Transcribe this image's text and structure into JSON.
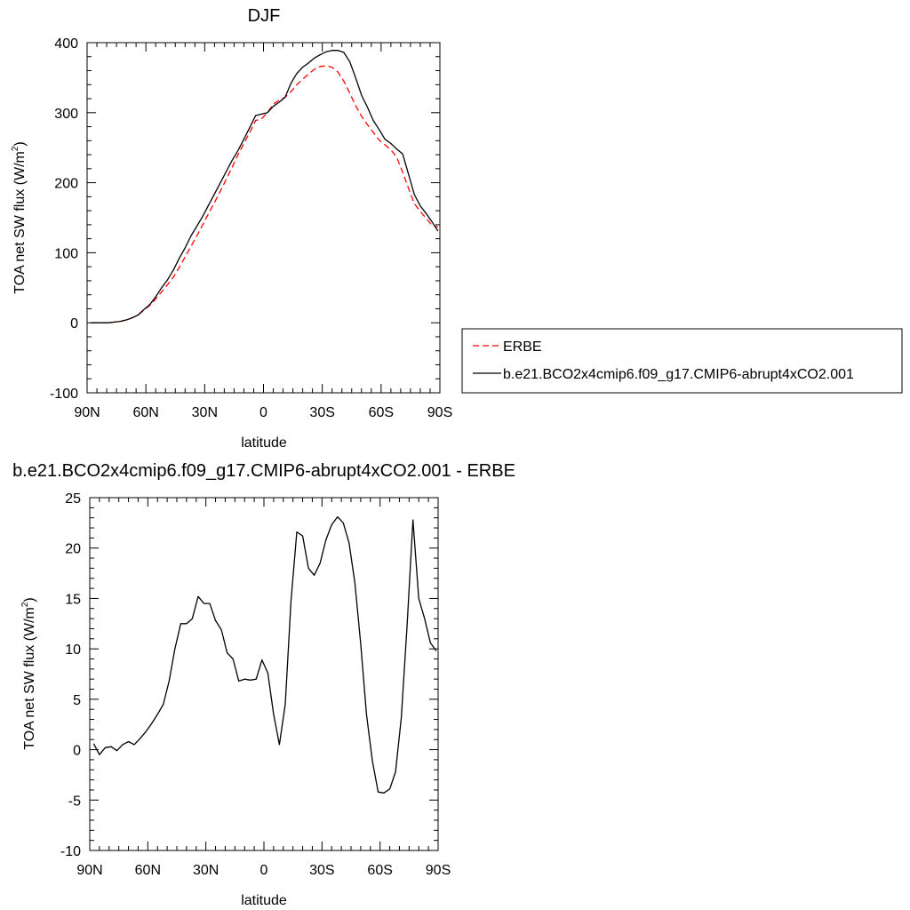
{
  "chart_data": [
    {
      "type": "line",
      "title": "DJF",
      "xlabel": "latitude",
      "ylabel": "TOA net SW flux (W/m",
      "ylabel_sup": "2",
      "ylabel_close": ")",
      "xlim": [
        90,
        -90
      ],
      "ylim": [
        -100,
        400
      ],
      "x_ticks": [
        {
          "value": 90,
          "label": "90N"
        },
        {
          "value": 60,
          "label": "60N"
        },
        {
          "value": 30,
          "label": "30N"
        },
        {
          "value": 0,
          "label": "0"
        },
        {
          "value": -30,
          "label": "30S"
        },
        {
          "value": -60,
          "label": "60S"
        },
        {
          "value": -90,
          "label": "90S"
        }
      ],
      "y_ticks": [
        {
          "value": -100,
          "label": "-100"
        },
        {
          "value": 0,
          "label": "0"
        },
        {
          "value": 100,
          "label": "100"
        },
        {
          "value": 200,
          "label": "200"
        },
        {
          "value": 300,
          "label": "300"
        },
        {
          "value": 400,
          "label": "400"
        }
      ],
      "legend_position": "right",
      "series": [
        {
          "name": "ERBE",
          "color": "#ff0000",
          "dash": true,
          "x": [
            88,
            85,
            82,
            79,
            76,
            73,
            70,
            67,
            64,
            61,
            58,
            55,
            52,
            49,
            46,
            43,
            40,
            37,
            34,
            31,
            28,
            25,
            22,
            19,
            16,
            13,
            10,
            7,
            4,
            1,
            -2,
            -5,
            -8,
            -11,
            -14,
            -17,
            -20,
            -23,
            -26,
            -29,
            -32,
            -35,
            -38,
            -41,
            -44,
            -47,
            -50,
            -53,
            -56,
            -59,
            -62,
            -65,
            -68,
            -71,
            -74,
            -77,
            -80,
            -83,
            -86,
            -89
          ],
          "y": [
            0,
            0,
            0,
            0,
            1,
            2,
            4,
            7,
            11,
            18,
            25,
            34,
            44,
            54,
            65,
            79,
            94,
            109,
            124,
            140,
            156,
            172,
            188,
            205,
            222,
            240,
            256,
            272,
            289,
            291,
            300,
            312,
            318,
            322,
            330,
            340,
            348,
            355,
            362,
            366,
            367,
            365,
            358,
            345,
            328,
            310,
            295,
            283,
            272,
            261,
            254,
            247,
            236,
            215,
            192,
            170,
            159,
            149,
            139,
            137
          ]
        },
        {
          "name": "b.e21.BCO2x4cmip6.f09_g17.CMIP6-abrupt4xCO2.001",
          "color": "#000000",
          "dash": false,
          "x": [
            88,
            85,
            82,
            79,
            76,
            73,
            70,
            67,
            64,
            61,
            58,
            55,
            52,
            49,
            46,
            43,
            40,
            37,
            34,
            31,
            28,
            25,
            22,
            19,
            16,
            13,
            10,
            7,
            4,
            1,
            -2,
            -5,
            -8,
            -11,
            -14,
            -17,
            -20,
            -23,
            -26,
            -29,
            -32,
            -35,
            -38,
            -41,
            -44,
            -47,
            -50,
            -53,
            -56,
            -59,
            -62,
            -65,
            -68,
            -71,
            -74,
            -77,
            -80,
            -83,
            -86,
            -89
          ],
          "y": [
            0,
            0,
            0,
            0,
            1,
            2,
            4,
            7,
            11,
            19,
            26,
            37,
            50,
            61,
            75,
            92,
            107,
            124,
            138,
            152,
            168,
            184,
            200,
            216,
            232,
            246,
            262,
            279,
            296,
            298,
            300,
            309,
            315,
            322,
            342,
            356,
            365,
            371,
            378,
            383,
            387,
            389,
            389,
            386,
            373,
            350,
            325,
            308,
            289,
            276,
            262,
            256,
            248,
            241,
            212,
            183,
            167,
            156,
            144,
            131
          ]
        }
      ]
    },
    {
      "type": "line",
      "title": "b.e21.BCO2x4cmip6.f09_g17.CMIP6-abrupt4xCO2.001 - ERBE",
      "xlabel": "latitude",
      "ylabel": "TOA net SW flux (W/m",
      "ylabel_sup": "2",
      "ylabel_close": ")",
      "xlim": [
        90,
        -90
      ],
      "ylim": [
        -10,
        25
      ],
      "x_ticks": [
        {
          "value": 90,
          "label": "90N"
        },
        {
          "value": 60,
          "label": "60N"
        },
        {
          "value": 30,
          "label": "30N"
        },
        {
          "value": 0,
          "label": "0"
        },
        {
          "value": -30,
          "label": "30S"
        },
        {
          "value": -60,
          "label": "60S"
        },
        {
          "value": -90,
          "label": "90S"
        }
      ],
      "y_ticks": [
        {
          "value": -10,
          "label": "-10"
        },
        {
          "value": -5,
          "label": "-5"
        },
        {
          "value": 0,
          "label": "0"
        },
        {
          "value": 5,
          "label": "5"
        },
        {
          "value": 10,
          "label": "10"
        },
        {
          "value": 15,
          "label": "15"
        },
        {
          "value": 20,
          "label": "20"
        },
        {
          "value": 25,
          "label": "25"
        }
      ],
      "series": [
        {
          "name": "",
          "color": "#000000",
          "dash": false,
          "x": [
            88,
            85,
            82,
            79,
            76,
            73,
            70,
            67,
            64,
            61,
            58,
            55,
            52,
            49,
            46,
            43,
            40,
            37,
            34,
            31,
            28,
            25,
            22,
            19,
            16,
            13,
            10,
            7,
            4,
            1,
            -2,
            -5,
            -8,
            -11,
            -14,
            -17,
            -20,
            -23,
            -26,
            -29,
            -32,
            -35,
            -38,
            -41,
            -44,
            -47,
            -50,
            -53,
            -56,
            -59,
            -62,
            -65,
            -68,
            -71,
            -74,
            -77,
            -80,
            -83,
            -86,
            -89
          ],
          "y": [
            0.6,
            -0.5,
            0.2,
            0.3,
            -0.1,
            0.5,
            0.8,
            0.5,
            1.1,
            1.8,
            2.6,
            3.5,
            4.5,
            6.8,
            10.0,
            12.5,
            12.5,
            13.0,
            15.2,
            14.5,
            14.5,
            12.8,
            11.9,
            9.6,
            9.0,
            6.8,
            7.0,
            6.9,
            7.0,
            8.9,
            7.6,
            3.5,
            0.5,
            4.5,
            14.8,
            21.6,
            21.2,
            18.0,
            17.3,
            18.5,
            20.8,
            22.3,
            23.1,
            22.5,
            20.5,
            16.5,
            10.5,
            3.5,
            -1.1,
            -4.2,
            -4.3,
            -3.9,
            -2.2,
            3.2,
            12.5,
            22.8,
            15.0,
            13.0,
            10.6,
            9.8
          ]
        }
      ]
    }
  ],
  "legend": {
    "entries": [
      {
        "label": "ERBE",
        "color": "#ff0000",
        "dash": true
      },
      {
        "label": "b.e21.BCO2x4cmip6.f09_g17.CMIP6-abrupt4xCO2.001",
        "color": "#000000",
        "dash": false
      }
    ]
  }
}
